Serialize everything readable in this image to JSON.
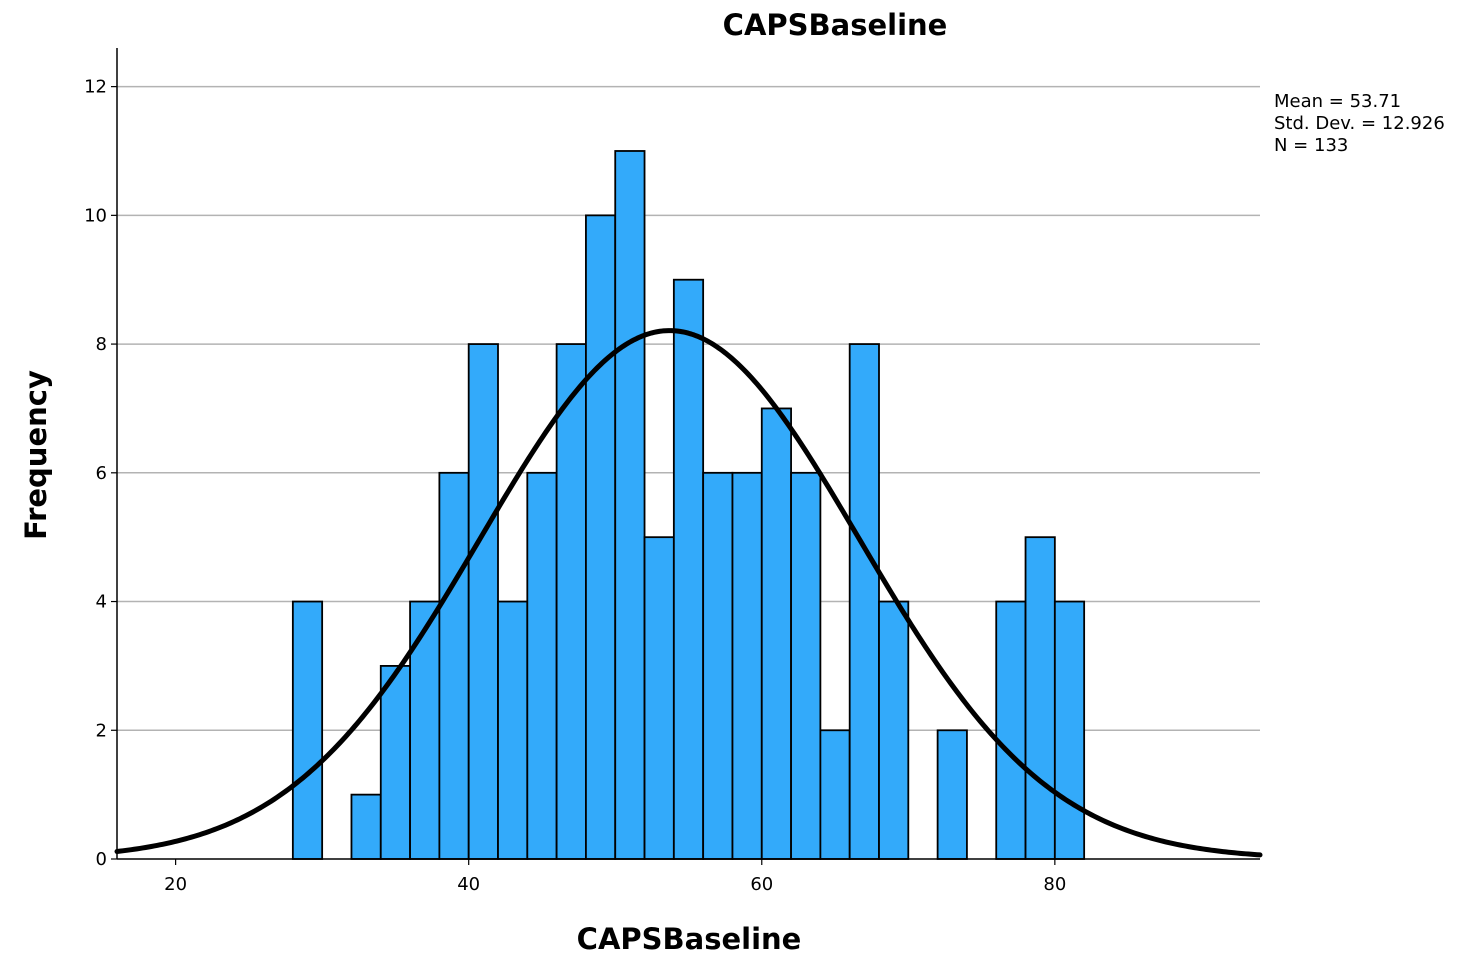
{
  "chart_data": {
    "type": "histogram",
    "title": "CAPSBaseline",
    "xlabel": "CAPSBaseline",
    "ylabel": "Frequency",
    "xlim": [
      16,
      94
    ],
    "ylim": [
      0,
      12.6
    ],
    "x_ticks": [
      20,
      40,
      60,
      80
    ],
    "y_ticks": [
      0,
      2,
      4,
      6,
      8,
      10,
      12
    ],
    "grid": "horizontal",
    "bin_width": 2,
    "bins": [
      {
        "x0": 28,
        "x1": 30,
        "count": 4
      },
      {
        "x0": 32,
        "x1": 34,
        "count": 1
      },
      {
        "x0": 34,
        "x1": 36,
        "count": 3
      },
      {
        "x0": 36,
        "x1": 38,
        "count": 4
      },
      {
        "x0": 38,
        "x1": 40,
        "count": 6
      },
      {
        "x0": 40,
        "x1": 42,
        "count": 8
      },
      {
        "x0": 42,
        "x1": 44,
        "count": 4
      },
      {
        "x0": 44,
        "x1": 46,
        "count": 6
      },
      {
        "x0": 46,
        "x1": 48,
        "count": 8
      },
      {
        "x0": 48,
        "x1": 50,
        "count": 10
      },
      {
        "x0": 50,
        "x1": 52,
        "count": 11
      },
      {
        "x0": 52,
        "x1": 54,
        "count": 5
      },
      {
        "x0": 54,
        "x1": 56,
        "count": 9
      },
      {
        "x0": 56,
        "x1": 58,
        "count": 6
      },
      {
        "x0": 58,
        "x1": 60,
        "count": 6
      },
      {
        "x0": 60,
        "x1": 62,
        "count": 7
      },
      {
        "x0": 62,
        "x1": 64,
        "count": 6
      },
      {
        "x0": 64,
        "x1": 66,
        "count": 2
      },
      {
        "x0": 66,
        "x1": 68,
        "count": 8
      },
      {
        "x0": 68,
        "x1": 70,
        "count": 4
      },
      {
        "x0": 72,
        "x1": 74,
        "count": 2
      },
      {
        "x0": 76,
        "x1": 78,
        "count": 4
      },
      {
        "x0": 78,
        "x1": 80,
        "count": 5
      },
      {
        "x0": 80,
        "x1": 82,
        "count": 4
      }
    ],
    "normal_curve": {
      "mean": 53.71,
      "std_dev": 12.926,
      "n": 133
    },
    "stats": {
      "mean": "Mean = 53.71",
      "std_dev": "Std. Dev. = 12.926",
      "n": "N = 133"
    },
    "legend_position": "top-right",
    "colors": {
      "bar_fill": "#33aafa",
      "bar_stroke": "#000000",
      "curve": "#000000",
      "grid": "#b3b3b3",
      "axis": "#000000"
    }
  }
}
